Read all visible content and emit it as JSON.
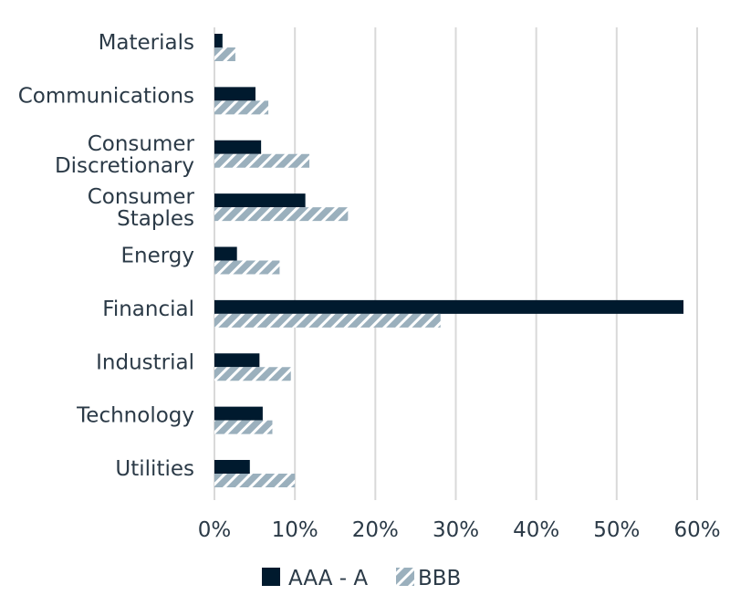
{
  "chart_data": {
    "type": "bar",
    "orientation": "horizontal",
    "categories": [
      [
        "Materials"
      ],
      [
        "Communications"
      ],
      [
        "Consumer",
        "Discretionary"
      ],
      [
        "Consumer",
        "Staples"
      ],
      [
        "Energy"
      ],
      [
        "Financial"
      ],
      [
        "Industrial"
      ],
      [
        "Technology"
      ],
      [
        "Utilities"
      ]
    ],
    "series": [
      {
        "name": "AAA - A",
        "color": "#001a2e",
        "pattern": "solid",
        "values": [
          1.0,
          5.1,
          5.8,
          11.3,
          2.8,
          58.3,
          5.6,
          6.0,
          4.4
        ]
      },
      {
        "name": "BBB",
        "color": "#9bb0bd",
        "pattern": "diagonal-hatch",
        "values": [
          2.6,
          6.7,
          11.8,
          16.6,
          8.1,
          28.1,
          9.5,
          7.2,
          10.0
        ]
      }
    ],
    "xlim": [
      0,
      60
    ],
    "xticks": [
      0,
      10,
      20,
      30,
      40,
      50,
      60
    ],
    "xtick_labels": [
      "0%",
      "10%",
      "20%",
      "30%",
      "40%",
      "50%",
      "60%"
    ],
    "grid": "vertical",
    "legend": "bottom"
  }
}
